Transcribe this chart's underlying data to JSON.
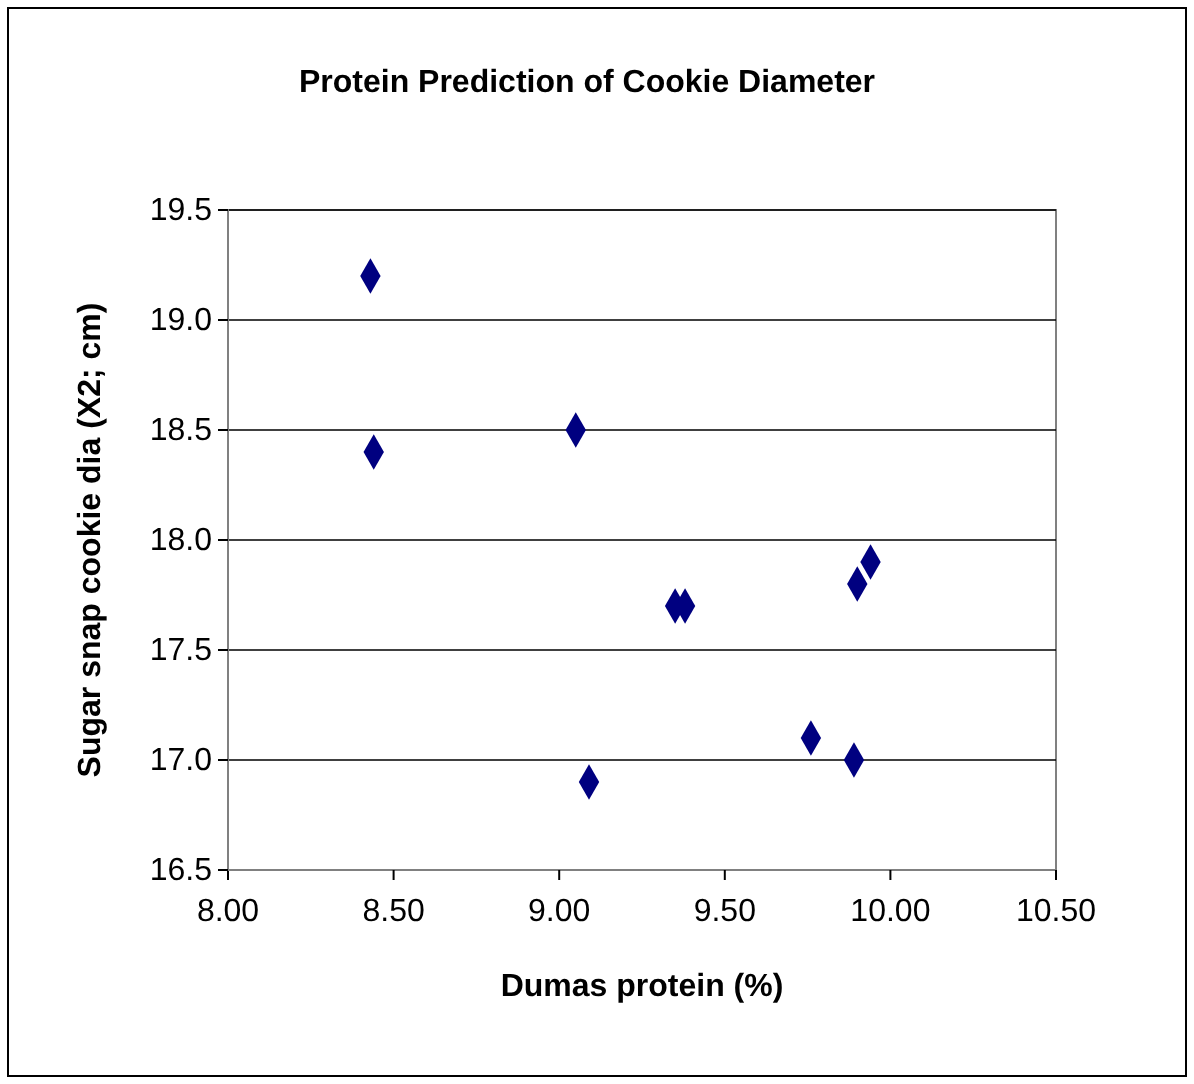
{
  "chart_data": {
    "type": "scatter",
    "title": "Protein Prediction of Cookie Diameter",
    "xlabel": "Dumas protein (%)",
    "ylabel": "Sugar snap cookie dia (X2; cm)",
    "x": [
      8.43,
      8.44,
      9.05,
      9.09,
      9.35,
      9.38,
      9.76,
      9.89,
      9.9,
      9.94
    ],
    "values": [
      19.2,
      18.4,
      18.5,
      16.9,
      17.7,
      17.7,
      17.1,
      17.0,
      17.8,
      17.9
    ],
    "color": "#000080",
    "marker": "diamond",
    "xlim": [
      8,
      10.5
    ],
    "xticks": [
      {
        "value": 8,
        "label": "8.00"
      },
      {
        "value": 8.5,
        "label": "8.50"
      },
      {
        "value": 9,
        "label": "9.00"
      },
      {
        "value": 9.5,
        "label": "9.50"
      },
      {
        "value": 10,
        "label": "10.00"
      },
      {
        "value": 10.5,
        "label": "10.50"
      }
    ],
    "ylim": [
      16.5,
      19.5
    ],
    "yticks": [
      {
        "value": 16.5,
        "label": "16.5"
      },
      {
        "value": 17,
        "label": "17.0"
      },
      {
        "value": 17.5,
        "label": "17.5"
      },
      {
        "value": 18,
        "label": "18.0"
      },
      {
        "value": 18.5,
        "label": "18.5"
      },
      {
        "value": 19,
        "label": "19.0"
      },
      {
        "value": 19.5,
        "label": "19.5"
      }
    ],
    "grid": "y"
  }
}
